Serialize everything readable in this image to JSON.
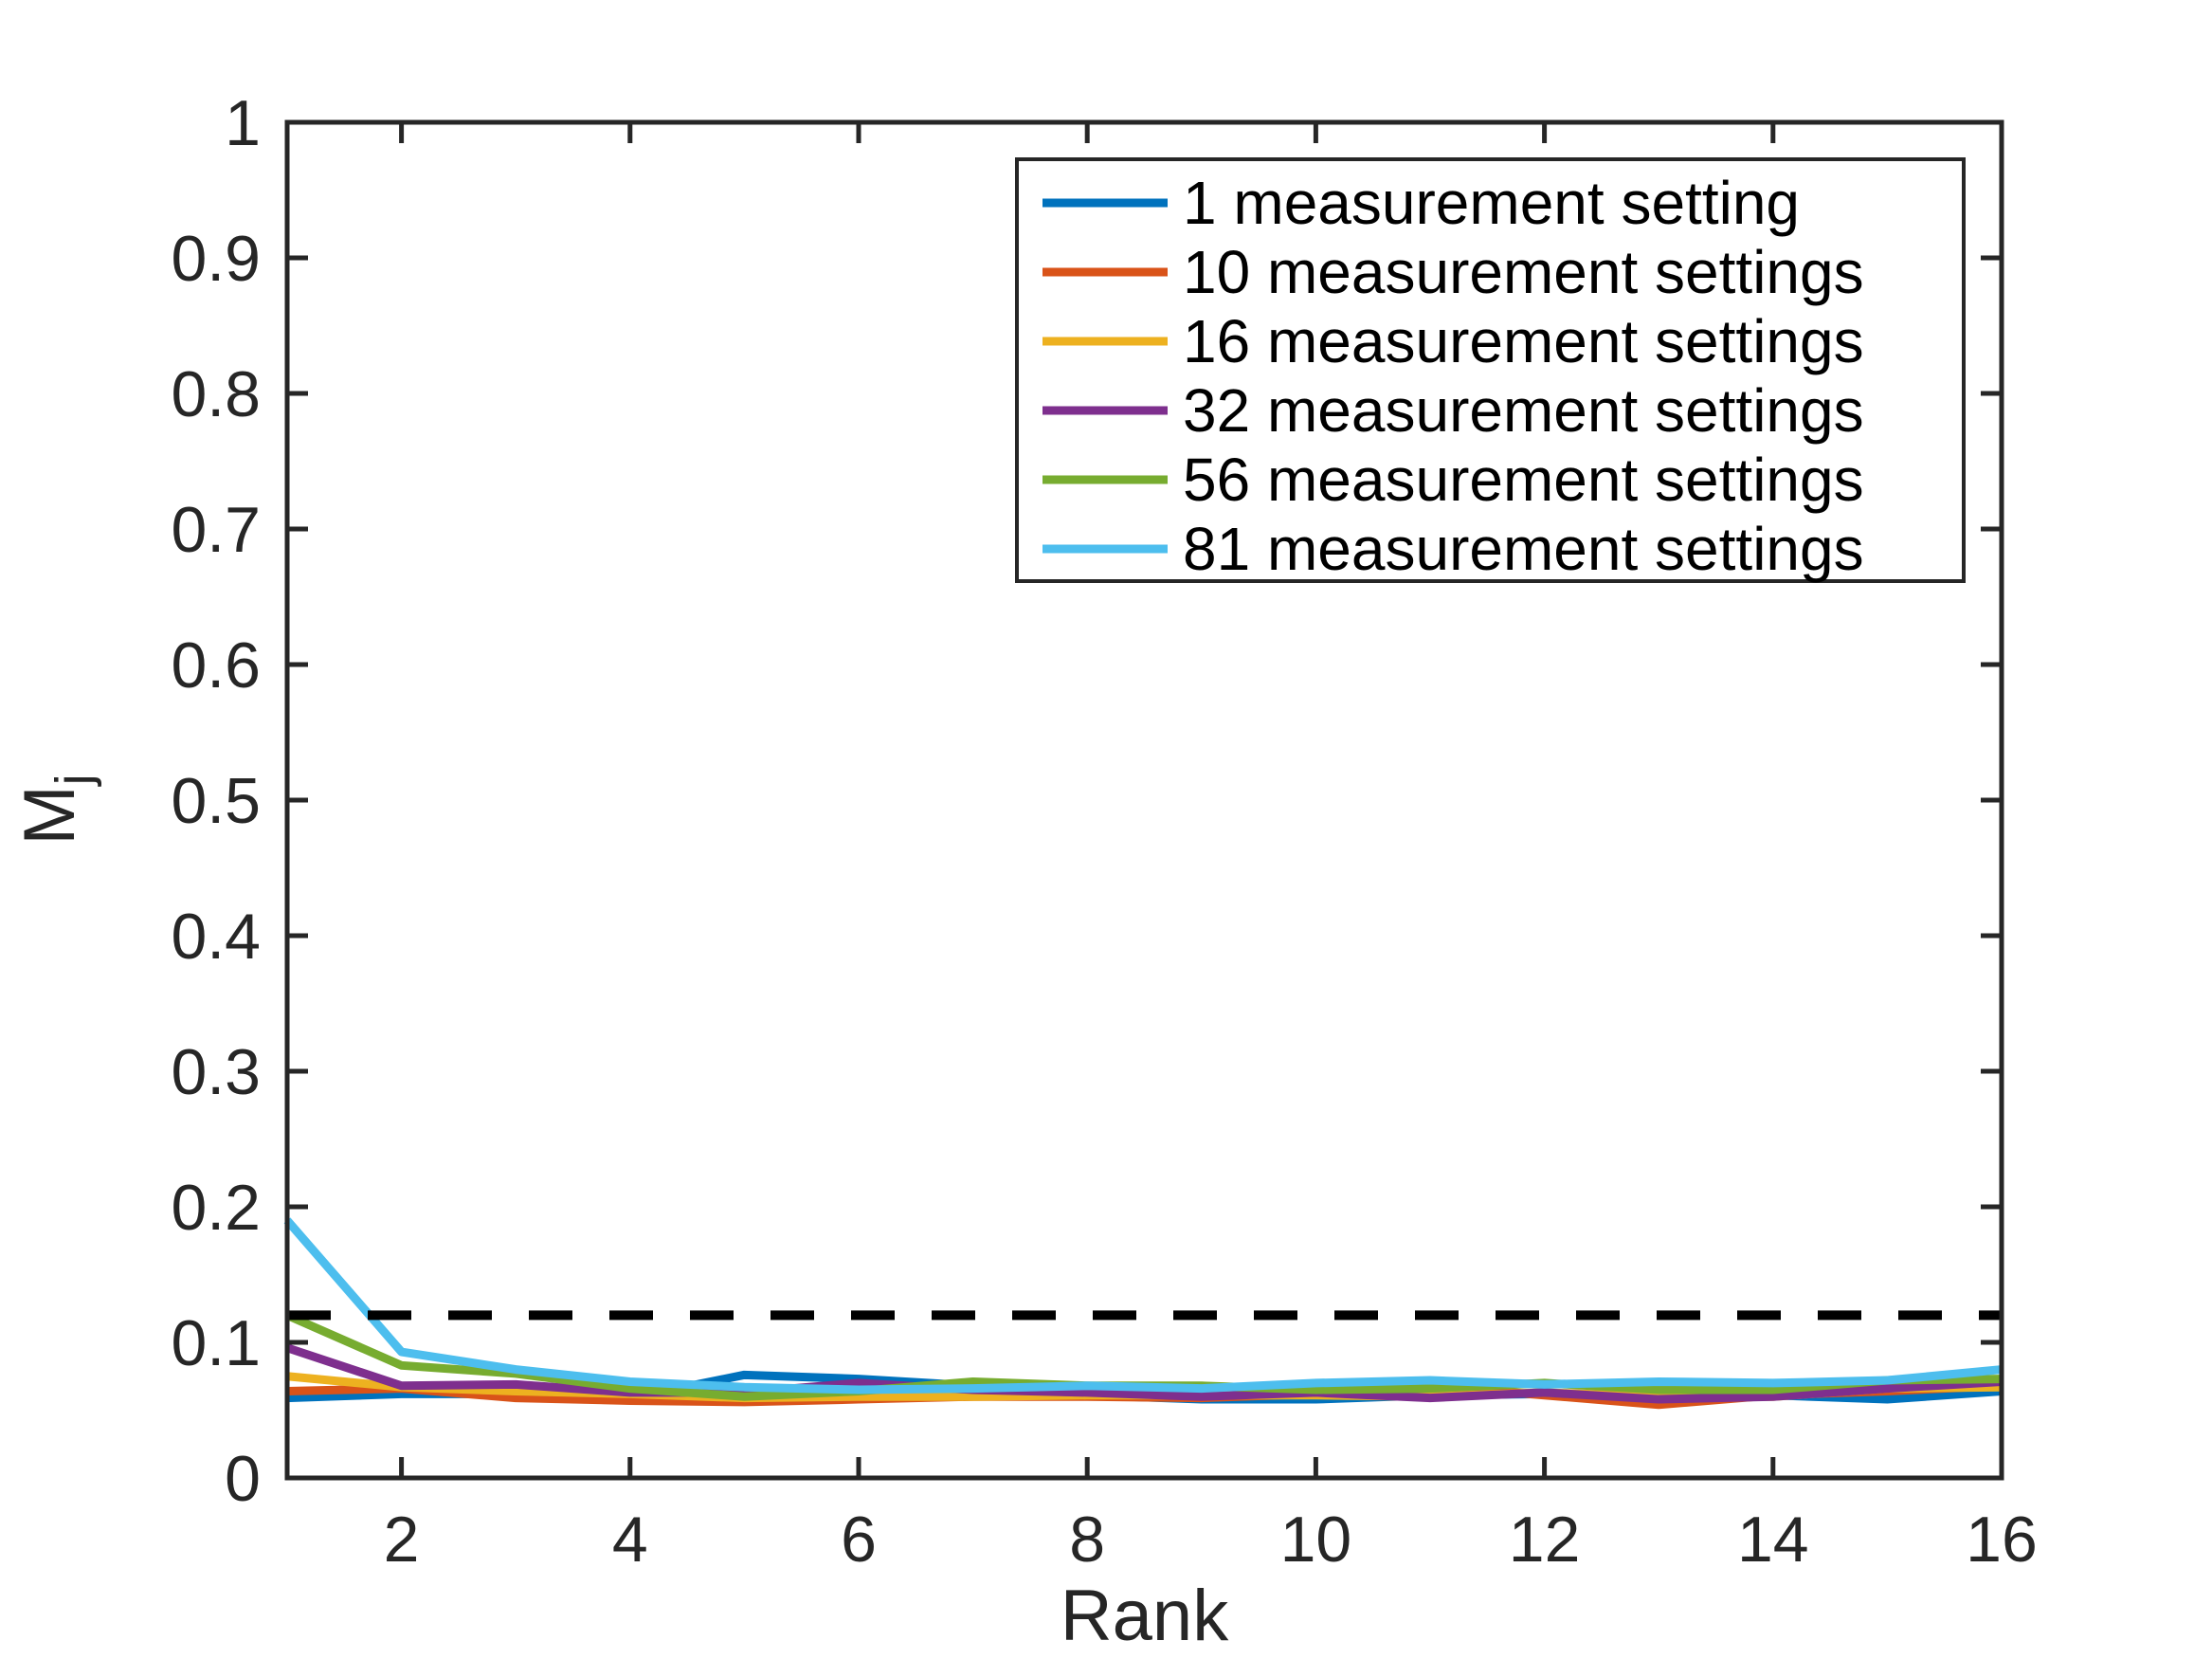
{
  "figure": {
    "background": "#ffffff",
    "axis_color": "#262626",
    "tick_label_color": "#262626",
    "legend_text_color": "#000000",
    "legend_border_color": "#262626"
  },
  "chart_data": {
    "type": "line",
    "xlabel": "Rank",
    "ylabel_base": "M",
    "ylabel_subscript": "j",
    "xlim": [
      1,
      16
    ],
    "ylim": [
      0,
      1
    ],
    "xticks": [
      2,
      4,
      6,
      8,
      10,
      12,
      14,
      16
    ],
    "yticks": [
      0,
      0.1,
      0.2,
      0.3,
      0.4,
      0.5,
      0.6,
      0.7,
      0.8,
      0.9,
      1
    ],
    "xticklabels": [
      "2",
      "4",
      "6",
      "8",
      "10",
      "12",
      "14",
      "16"
    ],
    "yticklabels": [
      "0",
      "0.1",
      "0.2",
      "0.3",
      "0.4",
      "0.5",
      "0.6",
      "0.7",
      "0.8",
      "0.9",
      "1"
    ],
    "grid": false,
    "legend_position": "northeast",
    "x": [
      1,
      2,
      3,
      4,
      5,
      6,
      7,
      8,
      9,
      10,
      11,
      12,
      13,
      14,
      15,
      16
    ],
    "series": [
      {
        "name": "1 measurement setting",
        "color": "#0072BD",
        "values": [
          0.059,
          0.062,
          0.062,
          0.059,
          0.076,
          0.073,
          0.068,
          0.061,
          0.058,
          0.058,
          0.061,
          0.062,
          0.06,
          0.061,
          0.058,
          0.064
        ]
      },
      {
        "name": "10 measurement settings",
        "color": "#D95319",
        "values": [
          0.064,
          0.066,
          0.059,
          0.057,
          0.056,
          0.058,
          0.06,
          0.06,
          0.059,
          0.062,
          0.068,
          0.061,
          0.054,
          0.061,
          0.064,
          0.068
        ]
      },
      {
        "name": "16 measurement settings",
        "color": "#EDB120",
        "values": [
          0.075,
          0.067,
          0.064,
          0.062,
          0.059,
          0.06,
          0.06,
          0.061,
          0.061,
          0.061,
          0.06,
          0.063,
          0.06,
          0.06,
          0.066,
          0.067
        ]
      },
      {
        "name": "32 measurement settings",
        "color": "#7E2F8E",
        "values": [
          0.096,
          0.068,
          0.069,
          0.063,
          0.063,
          0.07,
          0.065,
          0.063,
          0.06,
          0.063,
          0.059,
          0.063,
          0.058,
          0.06,
          0.066,
          0.071
        ]
      },
      {
        "name": "56 measurement settings",
        "color": "#77AC30",
        "values": [
          0.12,
          0.083,
          0.077,
          0.066,
          0.06,
          0.064,
          0.071,
          0.068,
          0.068,
          0.065,
          0.066,
          0.07,
          0.065,
          0.065,
          0.072,
          0.073
        ]
      },
      {
        "name": "81 measurement settings",
        "color": "#4DBEEE",
        "values": [
          0.19,
          0.093,
          0.08,
          0.071,
          0.067,
          0.065,
          0.066,
          0.068,
          0.066,
          0.07,
          0.072,
          0.069,
          0.071,
          0.07,
          0.072,
          0.08
        ]
      }
    ],
    "reference_line": {
      "y": 0.12,
      "color": "#000000",
      "style": "dashed"
    }
  }
}
